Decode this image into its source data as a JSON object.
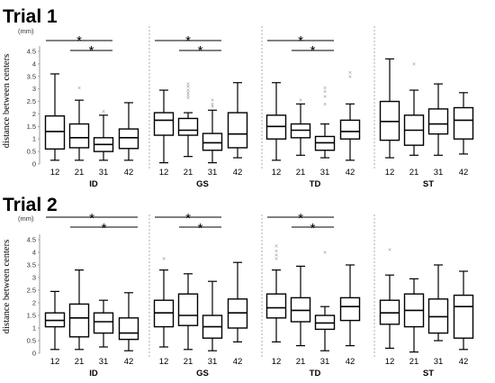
{
  "trials": [
    {
      "title": "Trial 1",
      "unit_label": "(mm)",
      "ylabel": "distance between centers",
      "yticks": [
        "0",
        "0.5",
        "1",
        "1.5",
        "2",
        "2.5",
        "3",
        "3.5",
        "4",
        "4.5"
      ],
      "groups": [
        {
          "name": "ID",
          "boxes": [
            {
              "label": "12",
              "min": 0.15,
              "q1": 0.6,
              "median": 1.3,
              "q3": 1.92,
              "max": 3.6,
              "outliers": []
            },
            {
              "label": "21",
              "min": 0.15,
              "q1": 0.65,
              "median": 1.05,
              "q3": 1.6,
              "max": 2.55,
              "outliers": [
                3.05
              ]
            },
            {
              "label": "31",
              "min": 0.15,
              "q1": 0.5,
              "median": 0.78,
              "q3": 1.05,
              "max": 1.95,
              "outliers": [
                2.1
              ]
            },
            {
              "label": "42",
              "min": 0.15,
              "q1": 0.62,
              "median": 1.05,
              "q3": 1.4,
              "max": 2.45,
              "outliers": []
            }
          ],
          "significance": [
            {
              "from": "12",
              "to": "31",
              "label": "*"
            },
            {
              "from": "21",
              "to": "31",
              "label": "*"
            }
          ]
        },
        {
          "name": "GS",
          "boxes": [
            {
              "label": "12",
              "min": 0.05,
              "q1": 1.15,
              "median": 1.75,
              "q3": 2.05,
              "max": 2.95,
              "outliers": []
            },
            {
              "label": "21",
              "min": 0.3,
              "q1": 1.15,
              "median": 1.35,
              "q3": 1.82,
              "max": 2.05,
              "outliers": [
                2.65,
                2.75,
                2.85,
                2.95,
                3.1,
                3.2
              ]
            },
            {
              "label": "31",
              "min": 0.05,
              "q1": 0.55,
              "median": 0.85,
              "q3": 1.22,
              "max": 2.15,
              "outliers": [
                2.3,
                2.4,
                2.55
              ]
            },
            {
              "label": "42",
              "min": 0.25,
              "q1": 0.65,
              "median": 1.2,
              "q3": 2.05,
              "max": 3.25,
              "outliers": []
            }
          ],
          "significance": [
            {
              "from": "12",
              "to": "31",
              "label": "*"
            },
            {
              "from": "21",
              "to": "31",
              "label": "*"
            }
          ]
        },
        {
          "name": "TD",
          "boxes": [
            {
              "label": "12",
              "min": 0.15,
              "q1": 1.0,
              "median": 1.5,
              "q3": 1.95,
              "max": 3.25,
              "outliers": []
            },
            {
              "label": "21",
              "min": 0.35,
              "q1": 1.05,
              "median": 1.35,
              "q3": 1.6,
              "max": 2.4,
              "outliers": [
                2.55
              ]
            },
            {
              "label": "31",
              "min": 0.25,
              "q1": 0.55,
              "median": 0.85,
              "q3": 1.1,
              "max": 1.6,
              "outliers": [
                2.4,
                2.7,
                2.9,
                3.05
              ]
            },
            {
              "label": "42",
              "min": 0.15,
              "q1": 1.0,
              "median": 1.3,
              "q3": 1.75,
              "max": 2.4,
              "outliers": [
                3.5,
                3.65
              ]
            }
          ],
          "significance": [
            {
              "from": "12",
              "to": "31",
              "label": "*"
            },
            {
              "from": "21",
              "to": "31",
              "label": "*"
            }
          ]
        },
        {
          "name": "ST",
          "boxes": [
            {
              "label": "12",
              "min": 0.25,
              "q1": 0.95,
              "median": 1.7,
              "q3": 2.5,
              "max": 4.2,
              "outliers": []
            },
            {
              "label": "21",
              "min": 0.35,
              "q1": 0.75,
              "median": 1.35,
              "q3": 1.95,
              "max": 2.95,
              "outliers": [
                4.0
              ]
            },
            {
              "label": "31",
              "min": 0.35,
              "q1": 1.2,
              "median": 1.6,
              "q3": 2.2,
              "max": 3.2,
              "outliers": []
            },
            {
              "label": "42",
              "min": 0.4,
              "q1": 1.0,
              "median": 1.75,
              "q3": 2.25,
              "max": 2.85,
              "outliers": []
            }
          ],
          "significance": []
        }
      ]
    },
    {
      "title": "Trial 2",
      "unit_label": "(mm)",
      "ylabel": "distance between centers",
      "yticks": [
        "0",
        "0.5",
        "1",
        "1.5",
        "2",
        "2.5",
        "3",
        "3.5",
        "4",
        "4.5"
      ],
      "groups": [
        {
          "name": "ID",
          "boxes": [
            {
              "label": "12",
              "min": 0.15,
              "q1": 1.05,
              "median": 1.3,
              "q3": 1.6,
              "max": 2.45,
              "outliers": []
            },
            {
              "label": "21",
              "min": 0.15,
              "q1": 0.65,
              "median": 1.4,
              "q3": 1.95,
              "max": 3.3,
              "outliers": []
            },
            {
              "label": "31",
              "min": 0.25,
              "q1": 0.8,
              "median": 1.25,
              "q3": 1.6,
              "max": 2.1,
              "outliers": []
            },
            {
              "label": "42",
              "min": 0.1,
              "q1": 0.55,
              "median": 0.8,
              "q3": 1.4,
              "max": 2.4,
              "outliers": []
            }
          ],
          "significance": [
            {
              "from": "12",
              "to": "42",
              "label": "*"
            },
            {
              "from": "21",
              "to": "42",
              "label": "*"
            }
          ]
        },
        {
          "name": "GS",
          "boxes": [
            {
              "label": "12",
              "min": 0.25,
              "q1": 1.05,
              "median": 1.6,
              "q3": 2.1,
              "max": 3.3,
              "outliers": [
                3.75
              ]
            },
            {
              "label": "21",
              "min": 0.15,
              "q1": 1.1,
              "median": 1.5,
              "q3": 2.35,
              "max": 3.15,
              "outliers": []
            },
            {
              "label": "31",
              "min": 0.1,
              "q1": 0.6,
              "median": 1.05,
              "q3": 1.5,
              "max": 2.85,
              "outliers": []
            },
            {
              "label": "42",
              "min": 0.45,
              "q1": 1.0,
              "median": 1.6,
              "q3": 2.15,
              "max": 3.6,
              "outliers": []
            }
          ],
          "significance": [
            {
              "from": "12",
              "to": "31",
              "label": "*"
            },
            {
              "from": "21",
              "to": "31",
              "label": "*"
            }
          ]
        },
        {
          "name": "TD",
          "boxes": [
            {
              "label": "12",
              "min": 0.45,
              "q1": 1.4,
              "median": 1.8,
              "q3": 2.35,
              "max": 3.3,
              "outliers": [
                3.75,
                3.9,
                4.05,
                4.25
              ]
            },
            {
              "label": "21",
              "min": 0.3,
              "q1": 1.25,
              "median": 1.7,
              "q3": 2.2,
              "max": 3.45,
              "outliers": []
            },
            {
              "label": "31",
              "min": 0.1,
              "q1": 0.95,
              "median": 1.2,
              "q3": 1.5,
              "max": 1.85,
              "outliers": [
                4.0
              ]
            },
            {
              "label": "42",
              "min": 0.3,
              "q1": 1.3,
              "median": 1.85,
              "q3": 2.2,
              "max": 3.5,
              "outliers": []
            }
          ],
          "significance": [
            {
              "from": "12",
              "to": "31",
              "label": "*"
            },
            {
              "from": "21",
              "to": "31",
              "label": "*"
            }
          ]
        },
        {
          "name": "ST",
          "boxes": [
            {
              "label": "12",
              "min": 0.2,
              "q1": 1.15,
              "median": 1.6,
              "q3": 2.1,
              "max": 3.1,
              "outliers": [
                4.1
              ]
            },
            {
              "label": "21",
              "min": 0.05,
              "q1": 1.05,
              "median": 1.7,
              "q3": 2.35,
              "max": 2.95,
              "outliers": []
            },
            {
              "label": "31",
              "min": 0.5,
              "q1": 0.8,
              "median": 1.45,
              "q3": 2.15,
              "max": 3.5,
              "outliers": []
            },
            {
              "label": "42",
              "min": 0.15,
              "q1": 0.6,
              "median": 1.85,
              "q3": 2.3,
              "max": 3.25,
              "outliers": []
            }
          ],
          "significance": []
        }
      ]
    }
  ],
  "colors": {
    "box": "#000000",
    "outlier": "#9a9a9a",
    "divider": "#999999",
    "axis": "#999999"
  },
  "outlier_marker": "×",
  "chart_data": [
    {
      "type": "box",
      "title": "Trial 1",
      "ylabel": "distance between centers",
      "unit": "(mm)",
      "ylim": [
        0,
        4.5
      ],
      "groups": [
        "ID",
        "GS",
        "TD",
        "ST"
      ],
      "categories": [
        "12",
        "21",
        "31",
        "42"
      ],
      "grid": false
    },
    {
      "type": "box",
      "title": "Trial 2",
      "ylabel": "distance between centers",
      "unit": "(mm)",
      "ylim": [
        0,
        4.5
      ],
      "groups": [
        "ID",
        "GS",
        "TD",
        "ST"
      ],
      "categories": [
        "12",
        "21",
        "31",
        "42"
      ],
      "grid": false
    }
  ]
}
